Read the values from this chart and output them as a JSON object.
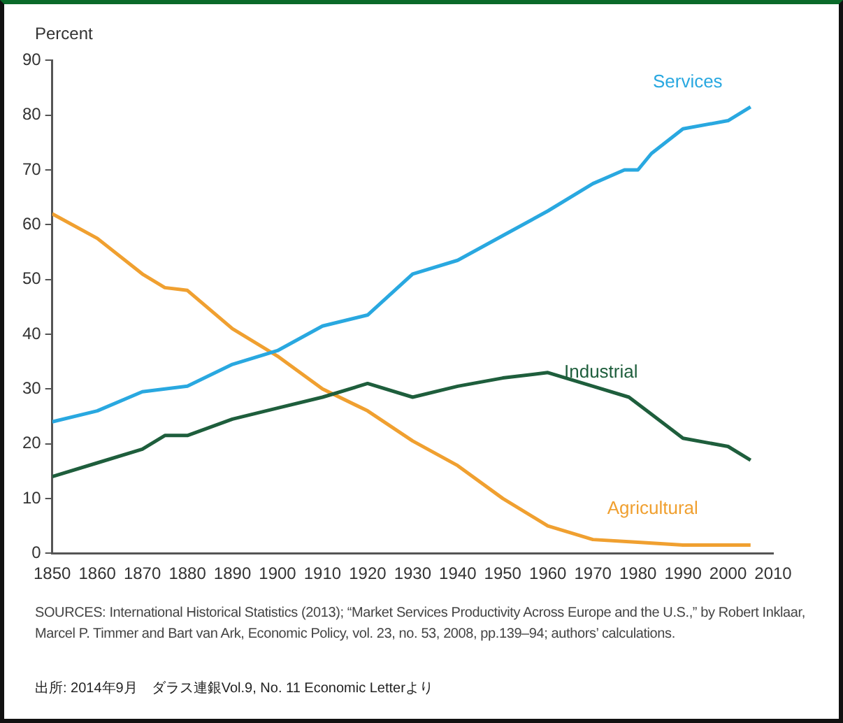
{
  "chart_data": {
    "type": "line",
    "ylabel": "Percent",
    "xlim": [
      1850,
      2010
    ],
    "xticks": [
      1850,
      1860,
      1870,
      1880,
      1890,
      1900,
      1910,
      1920,
      1930,
      1940,
      1950,
      1960,
      1970,
      1980,
      1990,
      2000,
      2010
    ],
    "ylim": [
      0,
      90
    ],
    "yticks": [
      0,
      10,
      20,
      30,
      40,
      50,
      60,
      70,
      80,
      90
    ],
    "grid": false,
    "legend": false,
    "marker": "none",
    "line_style": "solid",
    "series": [
      {
        "name": "Services",
        "color": "#29a8e0",
        "x": [
          1850,
          1860,
          1870,
          1880,
          1890,
          1900,
          1910,
          1920,
          1930,
          1940,
          1950,
          1960,
          1970,
          1977,
          1980,
          1983,
          1990,
          2000,
          2005
        ],
        "values": [
          24,
          26,
          29.5,
          30.5,
          34.5,
          37,
          41.5,
          43.5,
          51,
          53.5,
          58,
          62.5,
          67.5,
          70,
          70,
          73,
          77.5,
          79,
          81.5
        ]
      },
      {
        "name": "Industrial",
        "color": "#1e5e3c",
        "x": [
          1850,
          1860,
          1870,
          1875,
          1880,
          1890,
          1900,
          1910,
          1920,
          1930,
          1940,
          1950,
          1960,
          1970,
          1978,
          1982,
          1990,
          2000,
          2005
        ],
        "values": [
          14,
          16.5,
          19,
          21.5,
          21.5,
          24.5,
          26.5,
          28.5,
          31,
          28.5,
          30.5,
          32,
          33,
          30.5,
          28.5,
          26,
          21,
          19.5,
          17
        ]
      },
      {
        "name": "Agricultural",
        "color": "#f0a030",
        "x": [
          1850,
          1860,
          1870,
          1875,
          1880,
          1890,
          1900,
          1910,
          1920,
          1930,
          1940,
          1950,
          1960,
          1970,
          1980,
          1990,
          2005
        ],
        "values": [
          62,
          57.5,
          51,
          48.5,
          48,
          41,
          36,
          30,
          26,
          20.5,
          16,
          10,
          5,
          2.5,
          2,
          1.5,
          1.5
        ]
      }
    ],
    "annotations": [
      "SOURCES: International Historical Statistics (2013); “Market Services Productivity Across Europe and the U.S.,” by Robert Inklaar, Marcel P. Timmer and Bart van Ark, Economic Policy, vol. 23, no. 53, 2008, pp.139–94; authors’ calculations.",
      "出所: 2014年9月　ダラス連銀Vol.9, No. 11 Economic Letterより"
    ]
  }
}
